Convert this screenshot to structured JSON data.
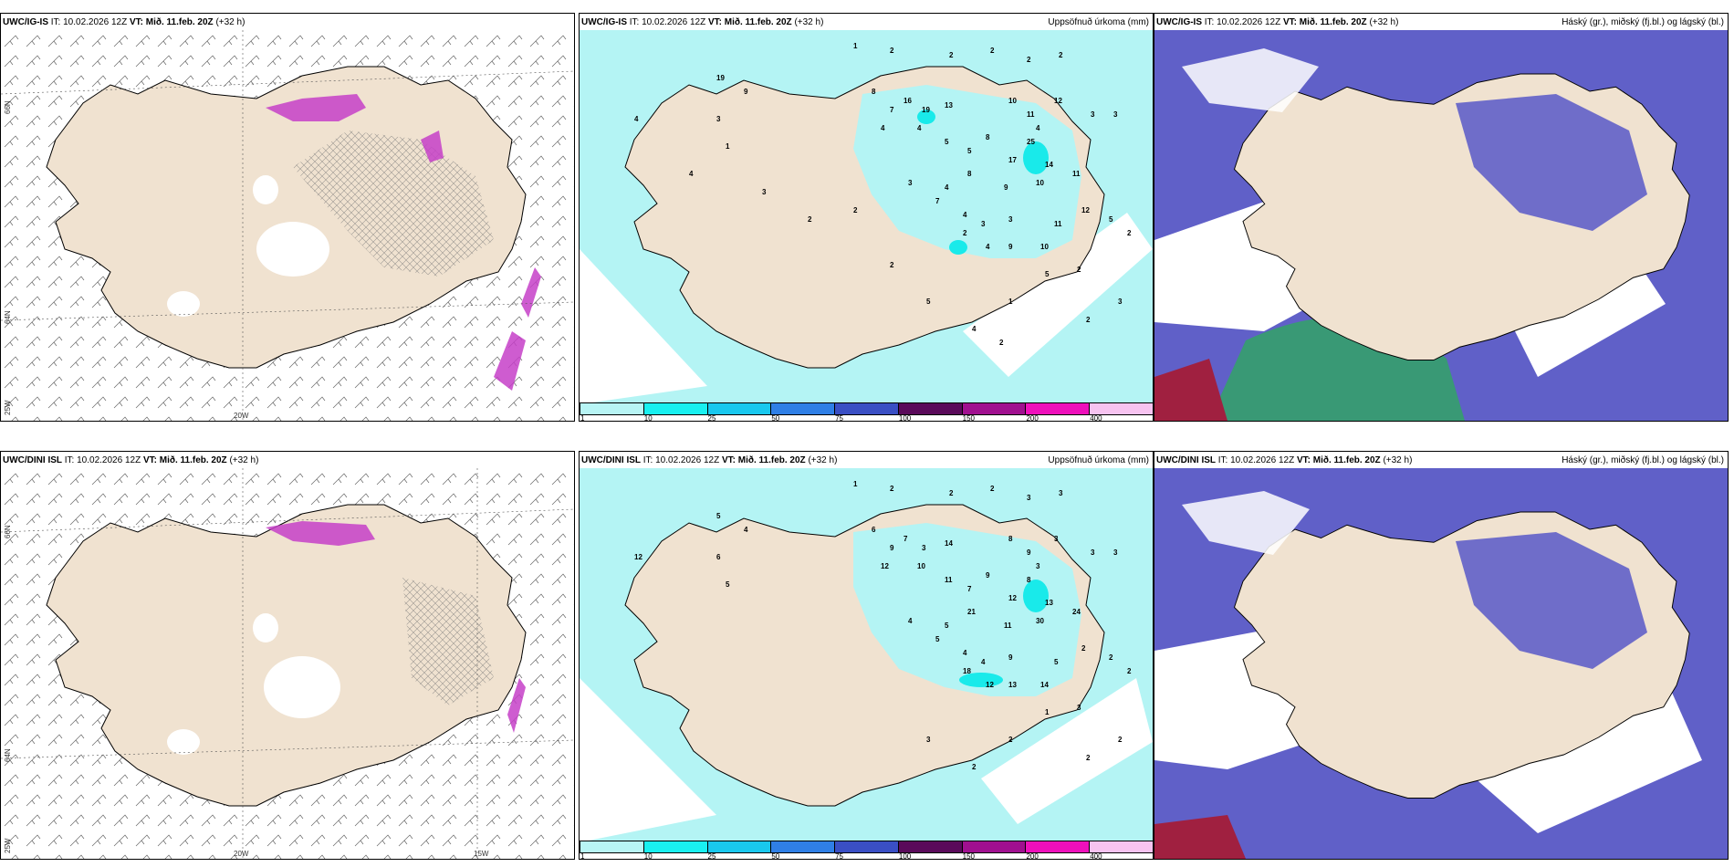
{
  "panels": {
    "p1": {
      "model": "UWC/IG-IS",
      "it_label": "IT:",
      "it": "10.02.2026 12Z",
      "vt_label": "VT:",
      "vt": "Mið. 11.feb. 20Z",
      "lead": "(+32 h)",
      "right": ""
    },
    "p2": {
      "model": "UWC/IG-IS",
      "it_label": "IT:",
      "it": "10.02.2026 12Z",
      "vt_label": "VT:",
      "vt": "Mið. 11.feb. 20Z",
      "lead": "(+32 h)",
      "right": "Uppsöfnuð úrkoma (mm)"
    },
    "p3": {
      "model": "UWC/IG-IS",
      "it_label": "IT:",
      "it": "10.02.2026 12Z",
      "vt_label": "VT:",
      "vt": "Mið. 11.feb. 20Z",
      "lead": "(+32 h)",
      "right": "Háský (gr.), miðský (fj.bl.) og lágský (bl.)"
    },
    "p4": {
      "model": "UWC/DINI ISL",
      "it_label": "IT:",
      "it": "10.02.2026 12Z",
      "vt_label": "VT:",
      "vt": "Mið. 11.feb. 20Z",
      "lead": "(+32 h)",
      "right": ""
    },
    "p5": {
      "model": "UWC/DINI ISL",
      "it_label": "IT:",
      "it": "10.02.2026 12Z",
      "vt_label": "VT:",
      "vt": "Mið. 11.feb. 20Z",
      "lead": "(+32 h)",
      "right": "Uppsöfnuð úrkoma (mm)"
    },
    "p6": {
      "model": "UWC/DINI ISL",
      "it_label": "IT:",
      "it": "10.02.2026 12Z",
      "vt_label": "VT:",
      "vt": "Mið. 11.feb. 20Z",
      "lead": "(+32 h)",
      "right": "Háský (gr.), miðský (fj.bl.) og lágský (bl.)"
    }
  },
  "axis_labels": {
    "lat66": "66N",
    "lat64": "64N",
    "lon25": "25W",
    "lon20": "20W",
    "lon15": "15W"
  },
  "colorbar": {
    "labels": [
      "1",
      "10",
      "25",
      "50",
      "75",
      "100",
      "150",
      "200",
      "400"
    ],
    "colors": [
      "#b8f5f5",
      "#19f0f0",
      "#19c8ee",
      "#2f7fe6",
      "#3a4fc4",
      "#5a0a5a",
      "#a0108f",
      "#ee10bb",
      "#f7c3f0"
    ]
  },
  "colors": {
    "land": "#f0e2d0",
    "precip_light": "#b4f4f4",
    "precip_mid": "#19eaea",
    "cloud_high": "#6060c8",
    "cloud_low": "#1ac0f0",
    "snow_magenta": "#c640c8",
    "coast": "#000000"
  },
  "precip_values_p2": [
    "1",
    "2",
    "2",
    "2",
    "2",
    "2",
    "19",
    "9",
    "3",
    "4",
    "1",
    "8",
    "7",
    "16",
    "19",
    "13",
    "10",
    "11",
    "12",
    "3",
    "3",
    "4",
    "4",
    "5",
    "8",
    "5",
    "4",
    "25",
    "14",
    "17",
    "11",
    "10",
    "9",
    "8",
    "4",
    "3",
    "7",
    "4",
    "3",
    "3",
    "2",
    "4",
    "9",
    "10",
    "11",
    "12",
    "5",
    "2",
    "2",
    "5",
    "1",
    "2",
    "3",
    "5",
    "4",
    "2",
    "2",
    "2",
    "3",
    "4",
    "2"
  ],
  "precip_values_p5": [
    "1",
    "2",
    "2",
    "2",
    "3",
    "3",
    "5",
    "4",
    "6",
    "12",
    "5",
    "6",
    "9",
    "7",
    "3",
    "14",
    "8",
    "9",
    "3",
    "3",
    "3",
    "12",
    "10",
    "11",
    "9",
    "7",
    "3",
    "8",
    "13",
    "12",
    "24",
    "30",
    "11",
    "21",
    "5",
    "4",
    "5",
    "4",
    "4",
    "9",
    "18",
    "12",
    "13",
    "14",
    "5",
    "2",
    "2",
    "2",
    "3",
    "1",
    "2",
    "2",
    "2",
    "3",
    "2"
  ]
}
